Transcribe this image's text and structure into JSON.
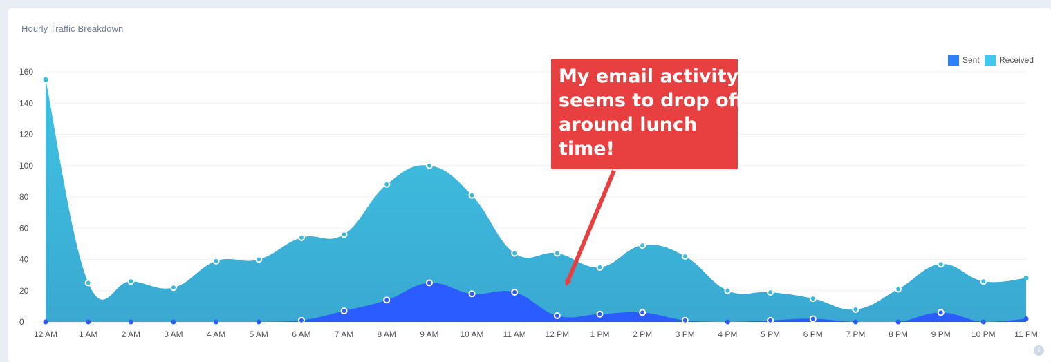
{
  "card": {
    "title": "Hourly Traffic Breakdown"
  },
  "annotation": {
    "lines": [
      "My email activity",
      "seems to drop off",
      "around lunch",
      "time!"
    ],
    "color": "#e84040"
  },
  "info_icon": "info-icon",
  "chart_data": {
    "type": "area",
    "categories": [
      "12 AM",
      "1 AM",
      "2 AM",
      "3 AM",
      "4 AM",
      "5 AM",
      "6 AM",
      "7 AM",
      "8 AM",
      "9 AM",
      "10 AM",
      "11 AM",
      "12 PM",
      "1 PM",
      "2 PM",
      "3 PM",
      "4 PM",
      "5 PM",
      "6 PM",
      "7 PM",
      "8 PM",
      "9 PM",
      "10 PM",
      "11 PM"
    ],
    "series": [
      {
        "name": "Sent",
        "color": "#2b5cff",
        "legend_color": "#2f80ff",
        "values": [
          0,
          0,
          0,
          0,
          0,
          0,
          1,
          7,
          14,
          25,
          18,
          19,
          4,
          5,
          6,
          1,
          0,
          1,
          2,
          0,
          0,
          6,
          0,
          2
        ]
      },
      {
        "name": "Received",
        "color": "#3bbbd9",
        "legend_color": "#40c8ee",
        "values": [
          155,
          25,
          26,
          22,
          39,
          40,
          54,
          56,
          88,
          100,
          81,
          44,
          44,
          35,
          49,
          42,
          20,
          19,
          15,
          8,
          21,
          37,
          26,
          28
        ]
      }
    ],
    "yticks": [
      0,
      20,
      40,
      60,
      80,
      100,
      120,
      140,
      160
    ],
    "ylim": [
      0,
      160
    ],
    "grid": true,
    "legend": "top-right"
  }
}
